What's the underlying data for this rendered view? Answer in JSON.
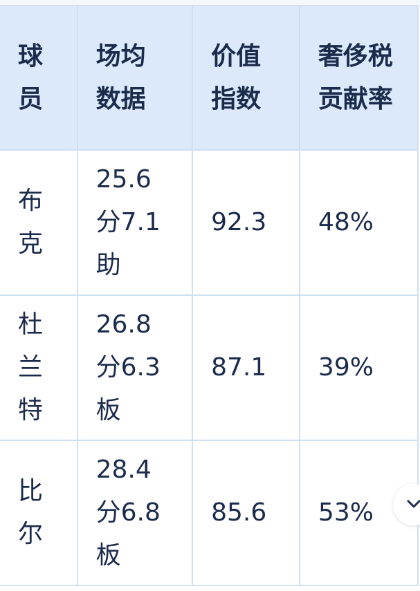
{
  "table": {
    "headers": [
      "球员",
      "场均数据",
      "价值指数",
      "奢侈税贡献率"
    ],
    "rows": [
      [
        "布克",
        "25.6分7.1助",
        "92.3",
        "48%"
      ],
      [
        "杜兰特",
        "26.8分6.3板",
        "87.1",
        "39%"
      ],
      [
        "比尔",
        "28.4分6.8板",
        "85.6",
        "53%"
      ]
    ]
  },
  "scroll_button": {
    "icon": "chevron-down-icon"
  },
  "colors": {
    "header_bg": "#dce9fb",
    "border": "#cfe0f4",
    "text": "#1b2b4b"
  }
}
